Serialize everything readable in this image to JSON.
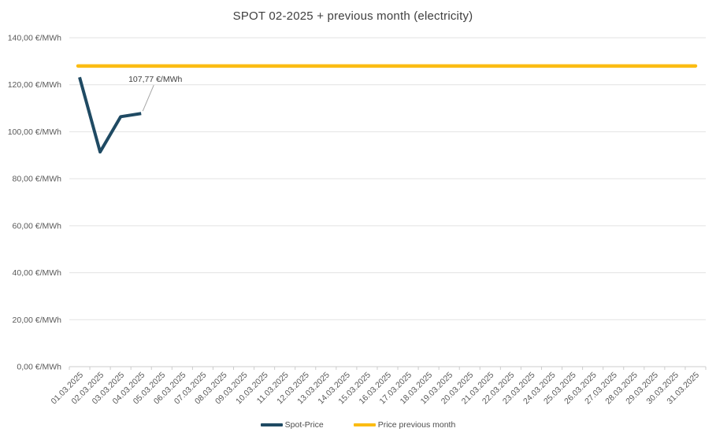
{
  "chart_title": "SPOT 02-2025 + previous month (electricity)",
  "chart_data": {
    "type": "line",
    "title": "SPOT 02-2025 + previous month (electricity)",
    "categories": [
      "01.03.2025",
      "02.03.2025",
      "03.03.2025",
      "04.03.2025",
      "05.03.2025",
      "06.03.2025",
      "07.03.2025",
      "08.03.2025",
      "09.03.2025",
      "10.03.2025",
      "11.03.2025",
      "12.03.2025",
      "13.03.2025",
      "14.03.2025",
      "15.03.2025",
      "16.03.2025",
      "17.03.2025",
      "18.03.2025",
      "19.03.2025",
      "20.03.2025",
      "21.03.2025",
      "22.03.2025",
      "23.03.2025",
      "24.03.2025",
      "25.03.2025",
      "26.03.2025",
      "27.03.2025",
      "28.03.2025",
      "29.03.2025",
      "30.03.2025",
      "31.03.2025"
    ],
    "series": [
      {
        "name": "Spot-Price",
        "color": "#1f4a63",
        "note": "line plotted only for first four days; values estimated from pixels except last which is labeled",
        "values": [
          123.2,
          91.4,
          106.4,
          107.77
        ]
      },
      {
        "name": "Price previous month",
        "color": "#fbbc13",
        "type": "constant",
        "value": 128,
        "note": "flat line across all 31 days, ~128 €/MWh estimated from gridlines"
      }
    ],
    "annotation": {
      "text": "107,77 €/MWh",
      "series": "Spot-Price",
      "category": "04.03.2025",
      "category_index": 3,
      "value": 107.77
    },
    "yticks": [
      {
        "value": 140,
        "label": "140,00 €/MWh"
      },
      {
        "value": 120,
        "label": "120,00 €/MWh"
      },
      {
        "value": 100,
        "label": "100,00 €/MWh"
      },
      {
        "value": 80,
        "label": "80,00 €/MWh"
      },
      {
        "value": 60,
        "label": "60,00 €/MWh"
      },
      {
        "value": 40,
        "label": "40,00 €/MWh"
      },
      {
        "value": 20,
        "label": "20,00 €/MWh"
      },
      {
        "value": 0,
        "label": "0,00 €/MWh"
      }
    ],
    "ylim": [
      0,
      140
    ],
    "grid": true,
    "legend_position": "bottom"
  },
  "legend": {
    "items": [
      {
        "label": "Spot-Price",
        "color": "#1f4a63"
      },
      {
        "label": "Price previous month",
        "color": "#fbbc13"
      }
    ]
  },
  "colors": {
    "title_text": "#3f3f3f",
    "axis_text": "#595959",
    "gridline": "#e2e2e2",
    "axis_line": "#cccccc",
    "annotation_text": "#404040",
    "leader_line": "#a6a6a6",
    "spot_line": "#1f4a63",
    "previous_month_line": "#fbbc13"
  }
}
